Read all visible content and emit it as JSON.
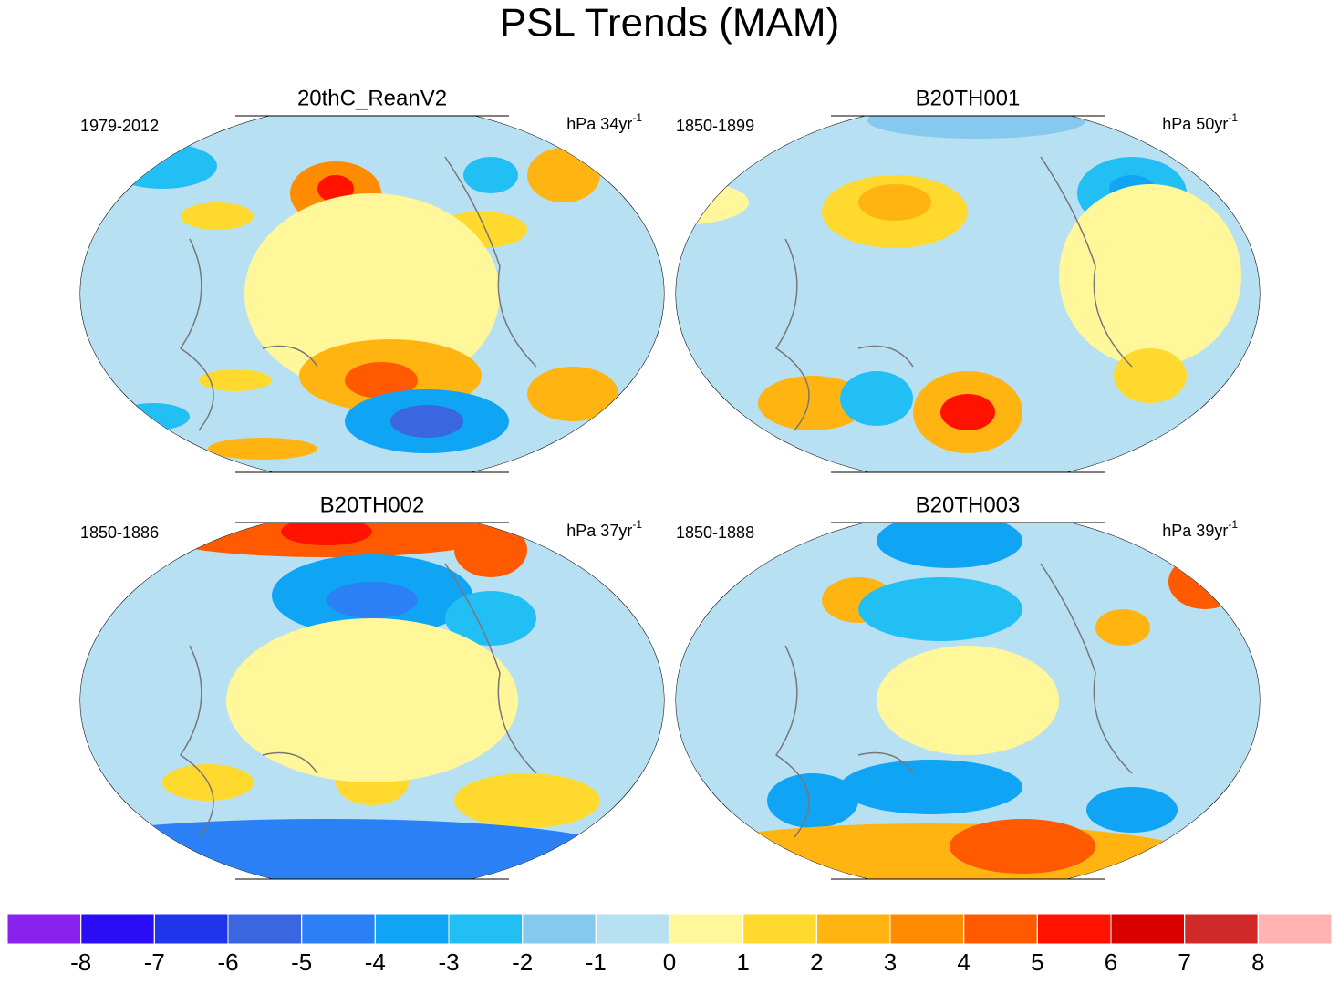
{
  "title": "PSL Trends (MAM)",
  "panels": [
    {
      "name": "20thC_ReanV2",
      "period": "1979-2012",
      "units": "hPa 34yr",
      "units_exponent": "-1"
    },
    {
      "name": "B20TH001",
      "period": "1850-1899",
      "units": "hPa 50yr",
      "units_exponent": "-1"
    },
    {
      "name": "B20TH002",
      "period": "1850-1886",
      "units": "hPa 37yr",
      "units_exponent": "-1"
    },
    {
      "name": "B20TH003",
      "period": "1850-1888",
      "units": "hPa 39yr",
      "units_exponent": "-1"
    }
  ],
  "colorbar": {
    "colors": [
      "#8a22ee",
      "#2a0df5",
      "#1f35ec",
      "#3a66e0",
      "#2b80f5",
      "#10a4f5",
      "#22bff5",
      "#86c9ee",
      "#b8e0f3",
      "#fff79a",
      "#ffd92e",
      "#ffb412",
      "#ff8c00",
      "#ff5a00",
      "#ff1200",
      "#d90000",
      "#d02a2a",
      "#ffb3b3"
    ],
    "ticks": [
      -8,
      -7,
      -6,
      -5,
      -4,
      -3,
      -2,
      -1,
      0,
      1,
      2,
      3,
      4,
      5,
      6,
      7,
      8
    ]
  }
}
